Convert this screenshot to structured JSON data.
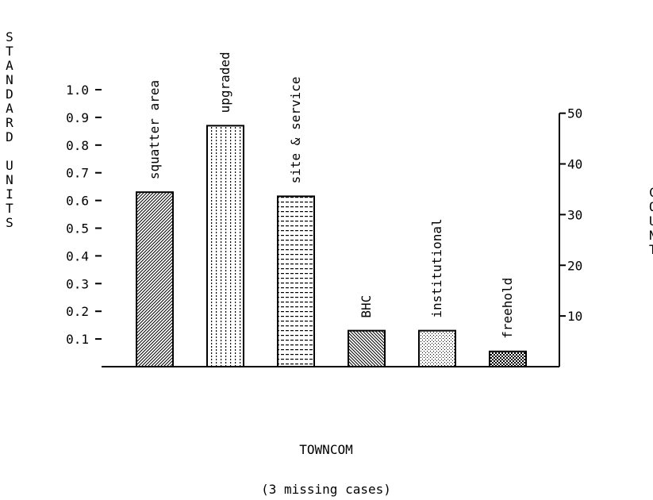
{
  "chart_data": {
    "type": "bar",
    "categories": [
      "squatter area",
      "upgraded",
      "site & service",
      "BHC",
      "institutional",
      "freehold"
    ],
    "values": [
      0.63,
      0.87,
      0.615,
      0.13,
      0.13,
      0.055
    ],
    "patterns": [
      "diag-forward",
      "dots-columns",
      "dash-rows",
      "diag-back",
      "stipple",
      "checker"
    ],
    "xlabel": "TOWNCOM",
    "ylabel": "STANDARD UNITS",
    "y2label": "COUNT",
    "note": "(3 missing cases)",
    "ylim": [
      0,
      1.0
    ],
    "yticks": [
      0.1,
      0.2,
      0.3,
      0.4,
      0.5,
      0.6,
      0.7,
      0.8,
      0.9,
      1.0
    ],
    "ytick_labels": [
      "0.1",
      "0.2",
      "0.3",
      "0.4",
      "0.5",
      "0.6",
      "0.7",
      "0.8",
      "0.9",
      "1.0"
    ],
    "y2ticks": [
      10,
      20,
      30,
      40,
      50
    ],
    "y2tick_labels": [
      "10",
      "20",
      "30",
      "40",
      "50"
    ],
    "y2_max_at_y": 0.915,
    "grid": false,
    "legend": "none",
    "colors": {
      "bar_fill": "#ffffff",
      "ink": "#000000"
    }
  }
}
